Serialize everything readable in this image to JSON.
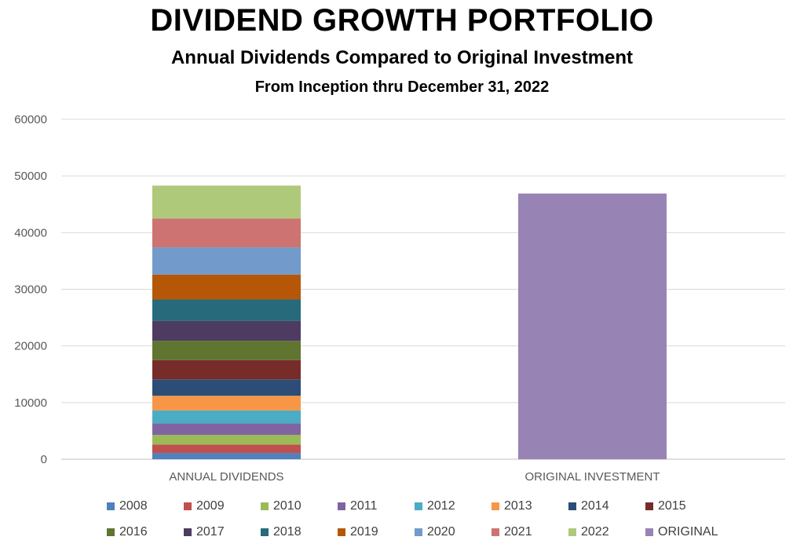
{
  "title": "DIVIDEND GROWTH PORTFOLIO",
  "subtitle": "Annual Dividends Compared to Original Investment",
  "subtitle2": "From Inception thru December 31, 2022",
  "chart_data": {
    "type": "bar",
    "stacked": true,
    "categories": [
      "ANNUAL DIVIDENDS",
      "ORIGINAL INVESTMENT"
    ],
    "ylim": [
      0,
      60000
    ],
    "yticks": [
      0,
      10000,
      20000,
      30000,
      40000,
      50000,
      60000
    ],
    "grid": true,
    "legend_position": "bottom",
    "series": [
      {
        "name": "2008",
        "color": "#4F81BD",
        "values": [
          1100,
          0
        ]
      },
      {
        "name": "2009",
        "color": "#C0504D",
        "values": [
          1500,
          0
        ]
      },
      {
        "name": "2010",
        "color": "#9BBB59",
        "values": [
          1700,
          0
        ]
      },
      {
        "name": "2011",
        "color": "#8064A2",
        "values": [
          2000,
          0
        ]
      },
      {
        "name": "2012",
        "color": "#4BACC6",
        "values": [
          2300,
          0
        ]
      },
      {
        "name": "2013",
        "color": "#F79646",
        "values": [
          2600,
          0
        ]
      },
      {
        "name": "2014",
        "color": "#2C4D75",
        "values": [
          2900,
          0
        ]
      },
      {
        "name": "2015",
        "color": "#772C2A",
        "values": [
          3400,
          0
        ]
      },
      {
        "name": "2016",
        "color": "#5F7530",
        "values": [
          3400,
          0
        ]
      },
      {
        "name": "2017",
        "color": "#4D3B62",
        "values": [
          3500,
          0
        ]
      },
      {
        "name": "2018",
        "color": "#276A7C",
        "values": [
          3800,
          0
        ]
      },
      {
        "name": "2019",
        "color": "#B65708",
        "values": [
          4400,
          0
        ]
      },
      {
        "name": "2020",
        "color": "#729ACA",
        "values": [
          4800,
          0
        ]
      },
      {
        "name": "2021",
        "color": "#CD7371",
        "values": [
          5100,
          0
        ]
      },
      {
        "name": "2022",
        "color": "#AFC97A",
        "values": [
          5800,
          0
        ]
      },
      {
        "name": "ORIGINAL",
        "color": "#9883B5",
        "values": [
          0,
          46900
        ]
      }
    ]
  }
}
